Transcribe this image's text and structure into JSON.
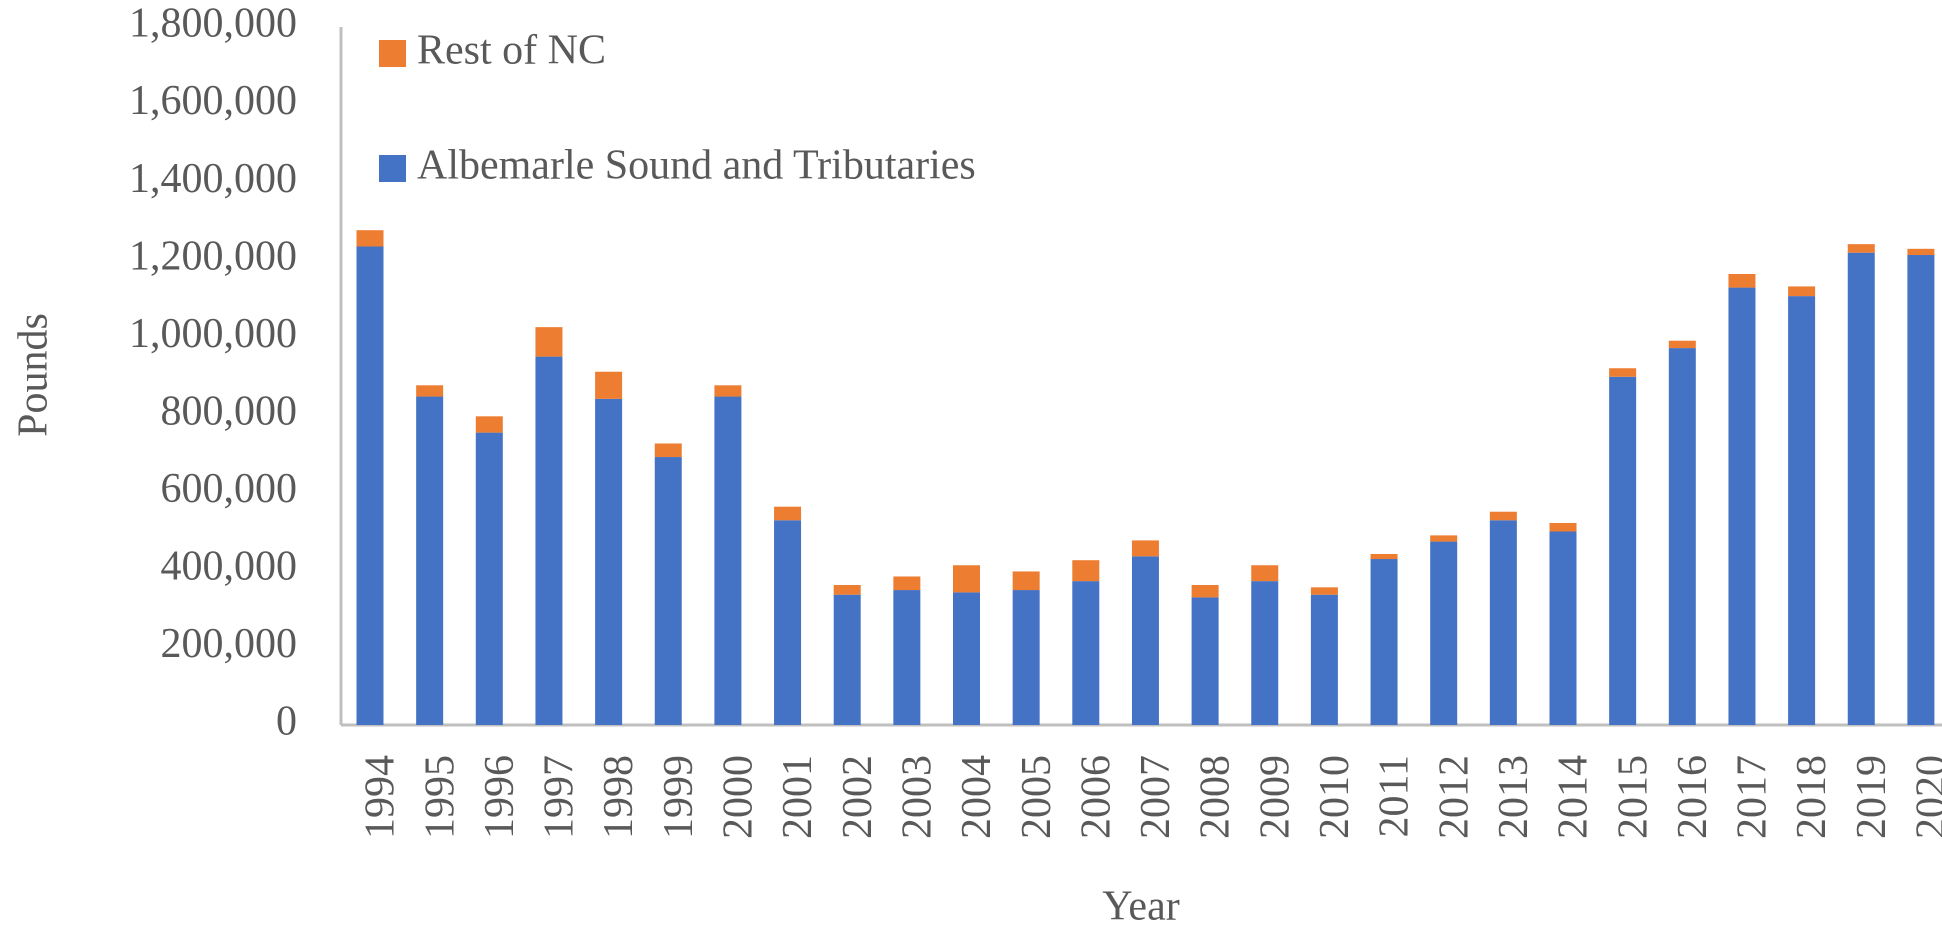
{
  "chart_data": {
    "type": "stacked_bar",
    "categories": [
      "1994",
      "1995",
      "1996",
      "1997",
      "1998",
      "1999",
      "2000",
      "2001",
      "2002",
      "2003",
      "2004",
      "2005",
      "2006",
      "2007",
      "2008",
      "2009",
      "2010",
      "2011",
      "2012",
      "2013",
      "2014",
      "2015",
      "2016",
      "2017",
      "2018",
      "2019",
      "2020"
    ],
    "series": [
      {
        "name": "Albemarle Sound and Tributaries",
        "color": "#4472c4",
        "values": [
          1234000,
          847000,
          754000,
          950000,
          841000,
          691000,
          847000,
          528000,
          336000,
          348000,
          342000,
          348000,
          371000,
          435000,
          329000,
          371000,
          336000,
          428000,
          473000,
          528000,
          499000,
          898000,
          972000,
          1128000,
          1106000,
          1218000,
          1212000
        ]
      },
      {
        "name": "Rest of NC",
        "color": "#ed7d31",
        "values": [
          42000,
          29000,
          42000,
          76000,
          70000,
          35000,
          29000,
          35000,
          25000,
          35000,
          70000,
          48000,
          54000,
          41000,
          32000,
          41000,
          19000,
          13000,
          16000,
          22000,
          22000,
          22000,
          19000,
          35000,
          25000,
          22000,
          16000
        ]
      }
    ],
    "x_label": "Year",
    "y_label": "Pounds",
    "ylim": [
      0,
      1800000
    ],
    "yticks": [
      0,
      {
        "value": 200000,
        "label": "200,000"
      },
      {
        "value": 400000,
        "label": "400,000"
      },
      {
        "value": 600000,
        "label": "600,000"
      },
      {
        "value": 800000,
        "label": "800,000"
      },
      {
        "value": 1000000,
        "label": "1,000,000"
      },
      {
        "value": 1200000,
        "label": "1,200,000"
      },
      {
        "value": 1400000,
        "label": "1,400,000"
      },
      {
        "value": 1600000,
        "label": "1,600,000"
      },
      {
        "value": 1800000,
        "label": "1,800,000"
      }
    ],
    "grid": false,
    "legend": "top-left"
  }
}
